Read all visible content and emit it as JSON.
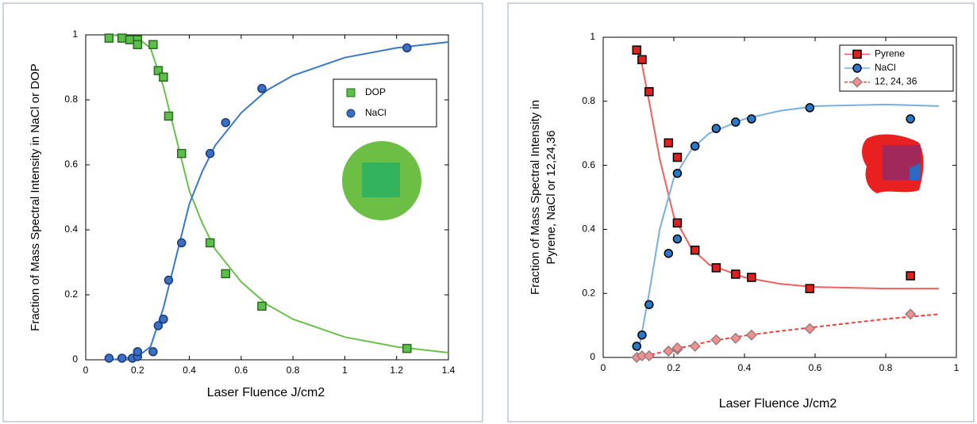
{
  "chart_data": [
    {
      "type": "scatter",
      "xlabel": "Laser Fluence J/cm2",
      "ylabel": [
        "Fraction of Mass Spectral Intensity in NaCl or DOP"
      ],
      "xlim": [
        0,
        1.4
      ],
      "xticks": [
        0,
        0.2,
        0.4,
        0.6,
        0.8,
        1,
        1.2,
        1.4
      ],
      "ylim": [
        0,
        1
      ],
      "yticks": [
        0,
        0.2,
        0.4,
        0.6,
        0.8,
        1
      ],
      "legend": "upper right",
      "legend_lines": false,
      "series": [
        {
          "name": "DOP",
          "color": "#5cbf4a",
          "edge": "#2a6a22",
          "line_color": "#6cc04a",
          "marker": "square",
          "dashed": false,
          "x": [
            0.09,
            0.14,
            0.17,
            0.2,
            0.2,
            0.26,
            0.28,
            0.3,
            0.32,
            0.37,
            0.48,
            0.54,
            0.68,
            1.24
          ],
          "values": [
            0.99,
            0.99,
            0.985,
            0.985,
            0.97,
            0.97,
            0.89,
            0.87,
            0.75,
            0.635,
            0.36,
            0.265,
            0.165,
            0.035
          ],
          "fit": {
            "x": [
              0.1,
              0.2,
              0.25,
              0.3,
              0.35,
              0.4,
              0.45,
              0.5,
              0.6,
              0.7,
              0.8,
              1.0,
              1.2,
              1.4
            ],
            "values": [
              1,
              0.99,
              0.96,
              0.84,
              0.68,
              0.52,
              0.42,
              0.34,
              0.24,
              0.17,
              0.125,
              0.07,
              0.04,
              0.022
            ]
          }
        },
        {
          "name": "NaCl",
          "color": "#3b6fc0",
          "edge": "#1a3a80",
          "line_color": "#3a78c8",
          "marker": "circle",
          "dashed": false,
          "x": [
            0.09,
            0.14,
            0.18,
            0.2,
            0.2,
            0.26,
            0.28,
            0.3,
            0.32,
            0.37,
            0.48,
            0.54,
            0.68,
            1.24
          ],
          "values": [
            0.005,
            0.005,
            0.005,
            0.01,
            0.025,
            0.025,
            0.105,
            0.125,
            0.245,
            0.36,
            0.635,
            0.73,
            0.835,
            0.96
          ],
          "fit": {
            "x": [
              0.1,
              0.2,
              0.25,
              0.3,
              0.35,
              0.4,
              0.45,
              0.5,
              0.6,
              0.7,
              0.8,
              1.0,
              1.2,
              1.4
            ],
            "values": [
              0,
              0.01,
              0.04,
              0.16,
              0.32,
              0.48,
              0.58,
              0.66,
              0.76,
              0.83,
              0.875,
              0.93,
              0.96,
              0.978
            ]
          }
        }
      ]
    },
    {
      "type": "scatter",
      "xlabel": "Laser Fluence J/cm2",
      "ylabel": [
        "Fraction of Mass Spectral Intensity in",
        "Pyrene, NaCl or 12,24,36"
      ],
      "xlim": [
        0,
        1
      ],
      "xticks": [
        0,
        0.2,
        0.4,
        0.6,
        0.8,
        1
      ],
      "ylim": [
        0,
        1
      ],
      "yticks": [
        0,
        0.2,
        0.4,
        0.6,
        0.8,
        1
      ],
      "legend": "upper right",
      "legend_lines": true,
      "series": [
        {
          "name": "Pyrene",
          "color": "#e02020",
          "edge": "#000000",
          "line_color": "#f06060",
          "marker": "square",
          "dashed": false,
          "x": [
            0.095,
            0.11,
            0.13,
            0.185,
            0.21,
            0.21,
            0.26,
            0.32,
            0.375,
            0.42,
            0.585,
            0.87
          ],
          "values": [
            0.96,
            0.93,
            0.83,
            0.67,
            0.625,
            0.42,
            0.335,
            0.28,
            0.26,
            0.25,
            0.215,
            0.255
          ],
          "fit": {
            "x": [
              0.1,
              0.13,
              0.16,
              0.2,
              0.25,
              0.3,
              0.4,
              0.5,
              0.6,
              0.8,
              0.95
            ],
            "values": [
              0.97,
              0.8,
              0.62,
              0.44,
              0.34,
              0.29,
              0.25,
              0.23,
              0.22,
              0.215,
              0.215
            ]
          }
        },
        {
          "name": "NaCl",
          "color": "#2a78c8",
          "edge": "#000000",
          "line_color": "#7ab0e0",
          "marker": "circle",
          "dashed": false,
          "x": [
            0.095,
            0.11,
            0.13,
            0.185,
            0.21,
            0.21,
            0.26,
            0.32,
            0.375,
            0.42,
            0.585,
            0.87
          ],
          "values": [
            0.035,
            0.07,
            0.165,
            0.325,
            0.575,
            0.37,
            0.66,
            0.715,
            0.735,
            0.745,
            0.78,
            0.745
          ],
          "fit": {
            "x": [
              0.1,
              0.13,
              0.16,
              0.2,
              0.25,
              0.3,
              0.4,
              0.5,
              0.6,
              0.8,
              0.95
            ],
            "values": [
              0.02,
              0.2,
              0.4,
              0.56,
              0.65,
              0.7,
              0.745,
              0.77,
              0.785,
              0.79,
              0.785
            ]
          }
        },
        {
          "name": "12, 24, 36",
          "color": "#f09090",
          "edge": "#9a7a7a",
          "line_color": "#f04040",
          "marker": "diamond",
          "dashed": true,
          "x": [
            0.095,
            0.11,
            0.13,
            0.185,
            0.21,
            0.21,
            0.26,
            0.32,
            0.375,
            0.42,
            0.585,
            0.87
          ],
          "values": [
            0,
            0.005,
            0.005,
            0.02,
            0.025,
            0.03,
            0.035,
            0.055,
            0.06,
            0.07,
            0.09,
            0.135
          ],
          "fit": {
            "x": [
              0.1,
              0.2,
              0.3,
              0.4,
              0.5,
              0.6,
              0.8,
              0.95
            ],
            "values": [
              0,
              0.025,
              0.05,
              0.068,
              0.082,
              0.095,
              0.12,
              0.135
            ]
          }
        }
      ]
    }
  ]
}
